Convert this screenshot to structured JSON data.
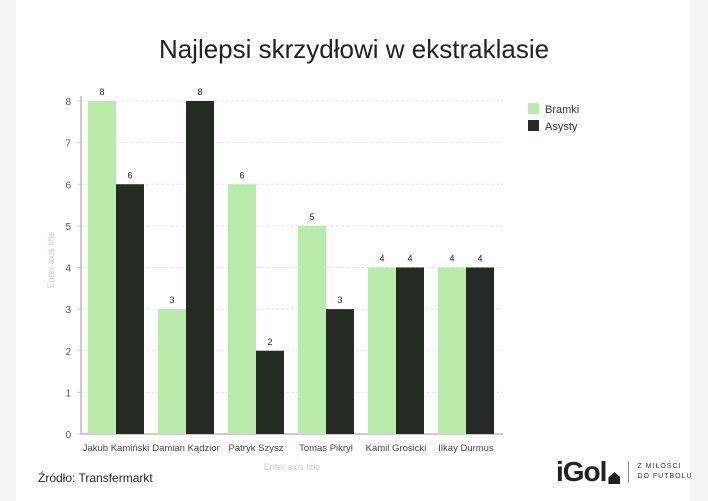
{
  "chart_data": {
    "type": "bar",
    "title": "Najlepsi skrzydłowi w ekstraklasie",
    "categories": [
      "Jakub Kamiński",
      "Damian Kądzior",
      "Patryk Szysz",
      "Tomas Pikryl",
      "Kamil Grosicki",
      "Ilkay Durmus"
    ],
    "series": [
      {
        "name": "Bramki",
        "color": "#b9ebaa",
        "values": [
          8,
          3,
          6,
          5,
          4,
          4
        ]
      },
      {
        "name": "Asysty",
        "color": "#262a25",
        "values": [
          6,
          8,
          2,
          3,
          4,
          4
        ]
      }
    ],
    "xlabel": "Enter axis title",
    "ylabel": "Enter axis title",
    "ylim": [
      0,
      8
    ],
    "yticks": [
      0,
      1,
      2,
      3,
      4,
      5,
      6,
      7,
      8
    ],
    "grid": true,
    "legend": "top-right",
    "data_labels": true
  },
  "footer": {
    "source": "Źródło: Transfermarkt"
  },
  "logo": {
    "brand": "iGol",
    "tagline_1": "Z MIŁOŚCI",
    "tagline_2": "DO FUTBOLU"
  }
}
